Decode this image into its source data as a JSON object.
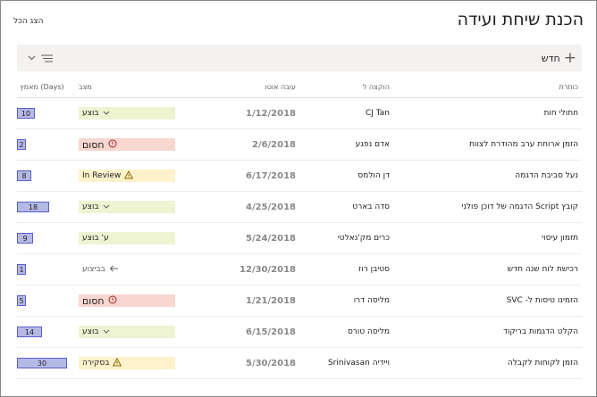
{
  "header": {
    "title": "הכנת שיחת ועידה",
    "show_all": "הצג הכל"
  },
  "toolbar": {
    "new_icon": "plus-icon",
    "new_label": "חדש",
    "view_icon": "view-options-icon",
    "chevron_icon": "chevron-down-icon"
  },
  "columns": {
    "title": "כותרת",
    "assigned": "הוקצה ל",
    "due": "עובה אוטו",
    "status": "מצב",
    "effort": "מאמץ (Days)"
  },
  "colors": {
    "green": "#eef3d2",
    "red": "#f7d7cf",
    "yellow": "#fdf2cc",
    "effort_fill": "#b4b9e6",
    "effort_border": "#5b5fc7"
  },
  "rows": [
    {
      "title": "חתולי חות",
      "assigned": "CJ Tan",
      "due": "1/12/2018",
      "status": "בוצע",
      "status_kind": "green",
      "status_icon": "chevron-down-icon",
      "effort": "10",
      "effort_fraction": 0.36
    },
    {
      "title": "הזמן ארוחת ערב מהודרת לצוות",
      "assigned": "אדם נפגע",
      "due": "2/6/2018",
      "status": "חסום",
      "status_kind": "red",
      "status_icon": "blocked-icon",
      "effort": "2",
      "effort_fraction": 0.07
    },
    {
      "title": "נעל סביבת הדגמה",
      "assigned": "דן הולמס",
      "due": "6/17/2018",
      "status": "In Review",
      "status_kind": "yellow",
      "status_icon": "warning-icon",
      "effort": "8",
      "effort_fraction": 0.29
    },
    {
      "title": "קובץ Script הדגמה של דוכן פולני",
      "assigned": "סדה בארט",
      "due": "4/25/2018",
      "status": "בוצע",
      "status_kind": "green",
      "status_icon": "chevron-down-icon",
      "effort": "18",
      "effort_fraction": 0.64
    },
    {
      "title": "תזמון עיסוי",
      "assigned": "כרים מק'נאלטי",
      "due": "5/24/2018",
      "status": "ע' בוצע",
      "status_kind": "green",
      "status_icon": "",
      "effort": "9",
      "effort_fraction": 0.32
    },
    {
      "title": "רכישת לוח שנה חדש",
      "assigned": "סטיבן רוז",
      "due": "12/30/2018",
      "status": "בביצוע",
      "status_kind": "plain",
      "status_icon": "arrow-left-icon",
      "effort": "1",
      "effort_fraction": 0.04
    },
    {
      "title": "הזמינו טיסות ל- SVC",
      "assigned": "מליסה דרו",
      "due": "1/21/2018",
      "status": "חסום",
      "status_kind": "red",
      "status_icon": "blocked-icon",
      "effort": "5",
      "effort_fraction": 0.18
    },
    {
      "title": "הקלט הדגמות בריקוד",
      "assigned": "מליסה טורס",
      "due": "6/15/2018",
      "status": "בוצע",
      "status_kind": "green",
      "status_icon": "chevron-down-icon",
      "effort": "14",
      "effort_fraction": 0.5
    },
    {
      "title": "הזמן לקוחות לקבלה",
      "assigned": "ויידיה Srinivasan",
      "due": "5/30/2018",
      "status": "בסקירה",
      "status_kind": "yellow",
      "status_icon": "warning-icon",
      "effort": "30",
      "effort_fraction": 1.0
    }
  ]
}
